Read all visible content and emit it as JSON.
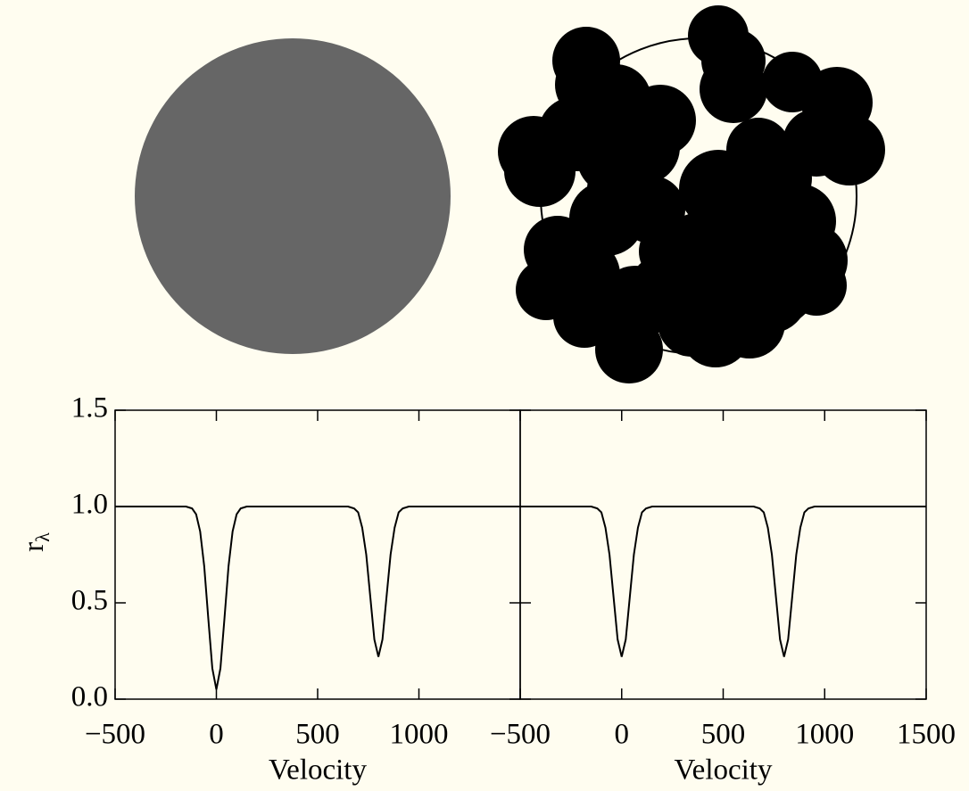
{
  "chart_data": [
    {
      "type": "line",
      "xlabel": "Velocity",
      "ylabel": "r",
      "ylabel_sub": "λ",
      "color": "#000000",
      "x": [
        -500,
        -150,
        -120,
        -100,
        -80,
        -60,
        -40,
        -20,
        0,
        20,
        40,
        60,
        80,
        100,
        120,
        150,
        650,
        680,
        700,
        720,
        740,
        760,
        780,
        800,
        820,
        840,
        860,
        880,
        900,
        920,
        950,
        1500
      ],
      "values": [
        1,
        1,
        0.99,
        0.96,
        0.87,
        0.69,
        0.42,
        0.16,
        0.05,
        0.16,
        0.42,
        0.69,
        0.87,
        0.96,
        0.99,
        1,
        1,
        0.99,
        0.97,
        0.89,
        0.75,
        0.53,
        0.31,
        0.22,
        0.31,
        0.53,
        0.75,
        0.89,
        0.97,
        0.99,
        1,
        1
      ],
      "xlim": [
        -500,
        1500
      ],
      "ylim": [
        0,
        1.5
      ],
      "xticks": [
        {
          "value": -500,
          "label": "−500"
        },
        0,
        500,
        1000
      ],
      "yticks": [
        {
          "value": 0,
          "label": "0.0"
        },
        0.5,
        {
          "value": 1,
          "label": "1.0"
        },
        1.5
      ]
    },
    {
      "type": "line",
      "xlabel": "Velocity",
      "color": "#000000",
      "x": [
        -500,
        -150,
        -120,
        -100,
        -80,
        -60,
        -40,
        -20,
        0,
        20,
        40,
        60,
        80,
        100,
        120,
        150,
        650,
        680,
        700,
        720,
        740,
        760,
        780,
        800,
        820,
        840,
        860,
        880,
        900,
        920,
        950,
        1500
      ],
      "values": [
        1,
        1,
        0.99,
        0.97,
        0.89,
        0.75,
        0.53,
        0.31,
        0.22,
        0.31,
        0.53,
        0.75,
        0.89,
        0.97,
        0.99,
        1,
        1,
        0.99,
        0.97,
        0.89,
        0.75,
        0.53,
        0.31,
        0.22,
        0.31,
        0.53,
        0.75,
        0.89,
        0.97,
        0.99,
        1,
        1
      ],
      "xlim": [
        -500,
        1500
      ],
      "ylim": [
        0,
        1.5
      ],
      "xticks": [
        {
          "value": -500,
          "label": "−500"
        },
        0,
        500,
        1000,
        1500
      ],
      "yticks": [
        0,
        0.5,
        1,
        1.5
      ]
    }
  ]
}
